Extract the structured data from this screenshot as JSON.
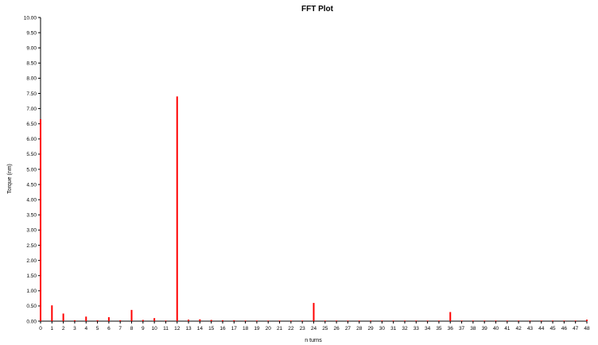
{
  "chart_data": {
    "type": "bar",
    "title": "FFT Plot",
    "xlabel": "n turns",
    "ylabel": "Torque (nm)",
    "xlim": [
      0,
      48
    ],
    "ylim": [
      0,
      10
    ],
    "yticks": [
      "0.00",
      "0.50",
      "1.00",
      "1.50",
      "2.00",
      "2.50",
      "3.00",
      "3.50",
      "4.00",
      "4.50",
      "5.00",
      "5.50",
      "6.00",
      "6.50",
      "7.00",
      "7.50",
      "8.00",
      "8.50",
      "9.00",
      "9.50",
      "10.00"
    ],
    "xticks": [
      "0",
      "1",
      "2",
      "3",
      "4",
      "5",
      "6",
      "7",
      "8",
      "9",
      "10",
      "11",
      "12",
      "13",
      "14",
      "15",
      "16",
      "17",
      "18",
      "19",
      "20",
      "21",
      "22",
      "23",
      "24",
      "25",
      "26",
      "27",
      "28",
      "29",
      "30",
      "31",
      "32",
      "33",
      "34",
      "35",
      "36",
      "37",
      "38",
      "39",
      "40",
      "41",
      "42",
      "43",
      "44",
      "45",
      "46",
      "47",
      "48"
    ],
    "grid": false,
    "bar_color": "#ff0000",
    "series": [
      {
        "x": [
          0,
          1,
          2,
          3,
          4,
          5,
          6,
          7,
          8,
          9,
          10,
          11,
          12,
          13,
          14,
          15,
          16,
          17,
          18,
          19,
          20,
          21,
          22,
          23,
          24,
          25,
          26,
          27,
          28,
          29,
          30,
          31,
          32,
          33,
          34,
          35,
          36,
          37,
          38,
          39,
          40,
          41,
          42,
          43,
          44,
          45,
          46,
          47,
          48
        ],
        "values": [
          6.65,
          0.52,
          0.25,
          0.03,
          0.15,
          0.03,
          0.13,
          0.03,
          0.37,
          0.04,
          0.1,
          0.02,
          7.4,
          0.05,
          0.06,
          0.04,
          0.03,
          0.03,
          0.02,
          0.02,
          0.02,
          0.02,
          0.02,
          0.02,
          0.6,
          0.02,
          0.02,
          0.02,
          0.02,
          0.02,
          0.02,
          0.02,
          0.02,
          0.02,
          0.02,
          0.02,
          0.3,
          0.02,
          0.02,
          0.02,
          0.02,
          0.02,
          0.02,
          0.02,
          0.02,
          0.02,
          0.02,
          0.02,
          0.05
        ]
      }
    ]
  }
}
